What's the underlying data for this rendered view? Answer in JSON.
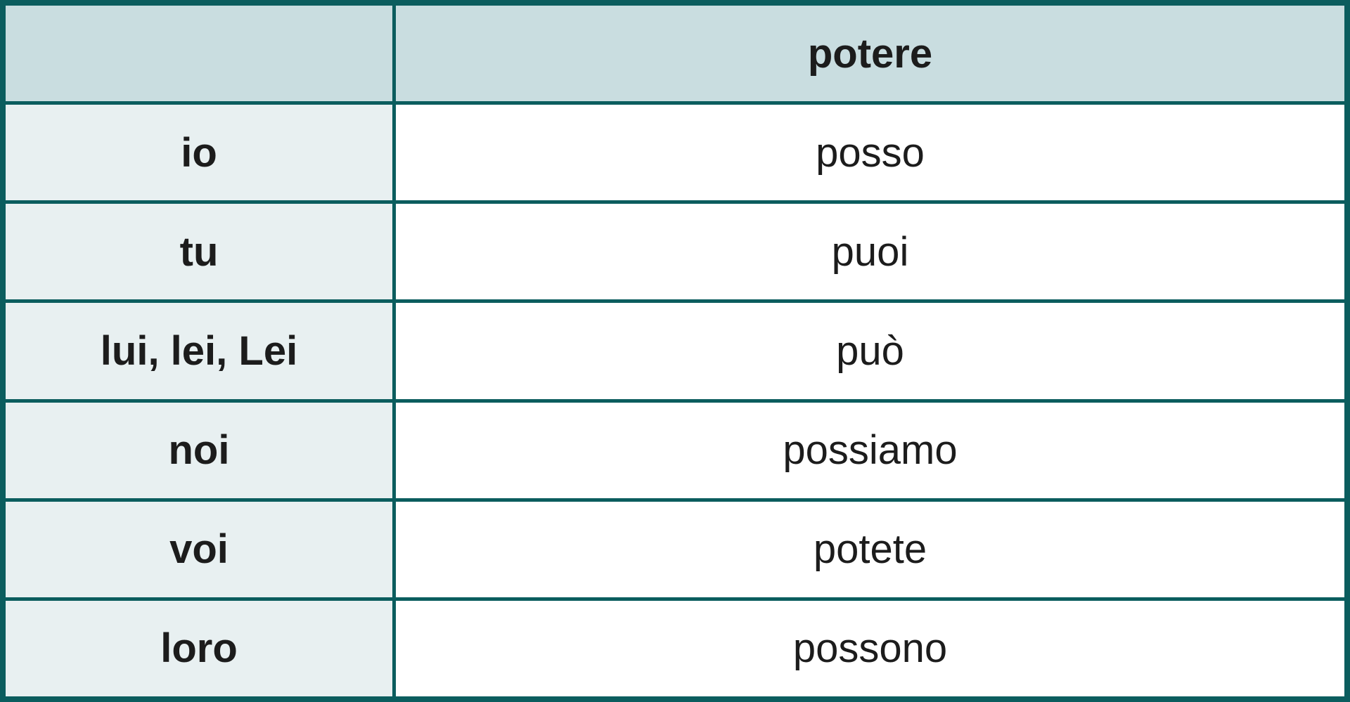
{
  "table": {
    "description_visible_title": "potere",
    "header": {
      "corner": "",
      "verb_label": "potere"
    },
    "rows": [
      {
        "pronoun": "io",
        "form": "posso"
      },
      {
        "pronoun": "tu",
        "form": "puoi"
      },
      {
        "pronoun": "lui, lei, Lei",
        "form": "può"
      },
      {
        "pronoun": "noi",
        "form": "possiamo"
      },
      {
        "pronoun": "voi",
        "form": "potete"
      },
      {
        "pronoun": "loro",
        "form": "possono"
      }
    ],
    "colors": {
      "border": "#0b5d5e",
      "header_background": "#c9dde0",
      "pronoun_column_background": "#e8f0f1",
      "form_column_background": "#ffffff",
      "text": "#1c1c1c"
    }
  }
}
